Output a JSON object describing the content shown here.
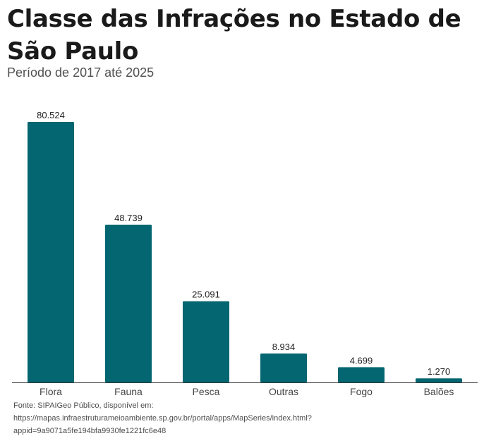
{
  "title": "Classe das Infrações no Estado de São Paulo",
  "subtitle": "Período de 2017 até 2025",
  "source": {
    "line1": "Fonte: SIPAIGeo Público, disponível em:",
    "line2": "https://mapas.infraestruturameioambiente.sp.gov.br/portal/apps/MapSeries/index.html?",
    "line3": "appid=9a9071a5fe194bfa9930fe1221fc6e48"
  },
  "colors": {
    "bar": "#046670",
    "axis": "#333333",
    "label": "#222222",
    "tick": "#444444"
  },
  "chart_data": {
    "type": "bar",
    "categories": [
      "Flora",
      "Fauna",
      "Pesca",
      "Outras",
      "Fogo",
      "Balões"
    ],
    "values": [
      80524,
      48739,
      25091,
      8934,
      4699,
      1270
    ],
    "value_labels": [
      "80.524",
      "48.739",
      "25.091",
      "8.934",
      "4.699",
      "1.270"
    ],
    "ylim": [
      0,
      80524
    ],
    "grid": false,
    "legend": "none"
  }
}
